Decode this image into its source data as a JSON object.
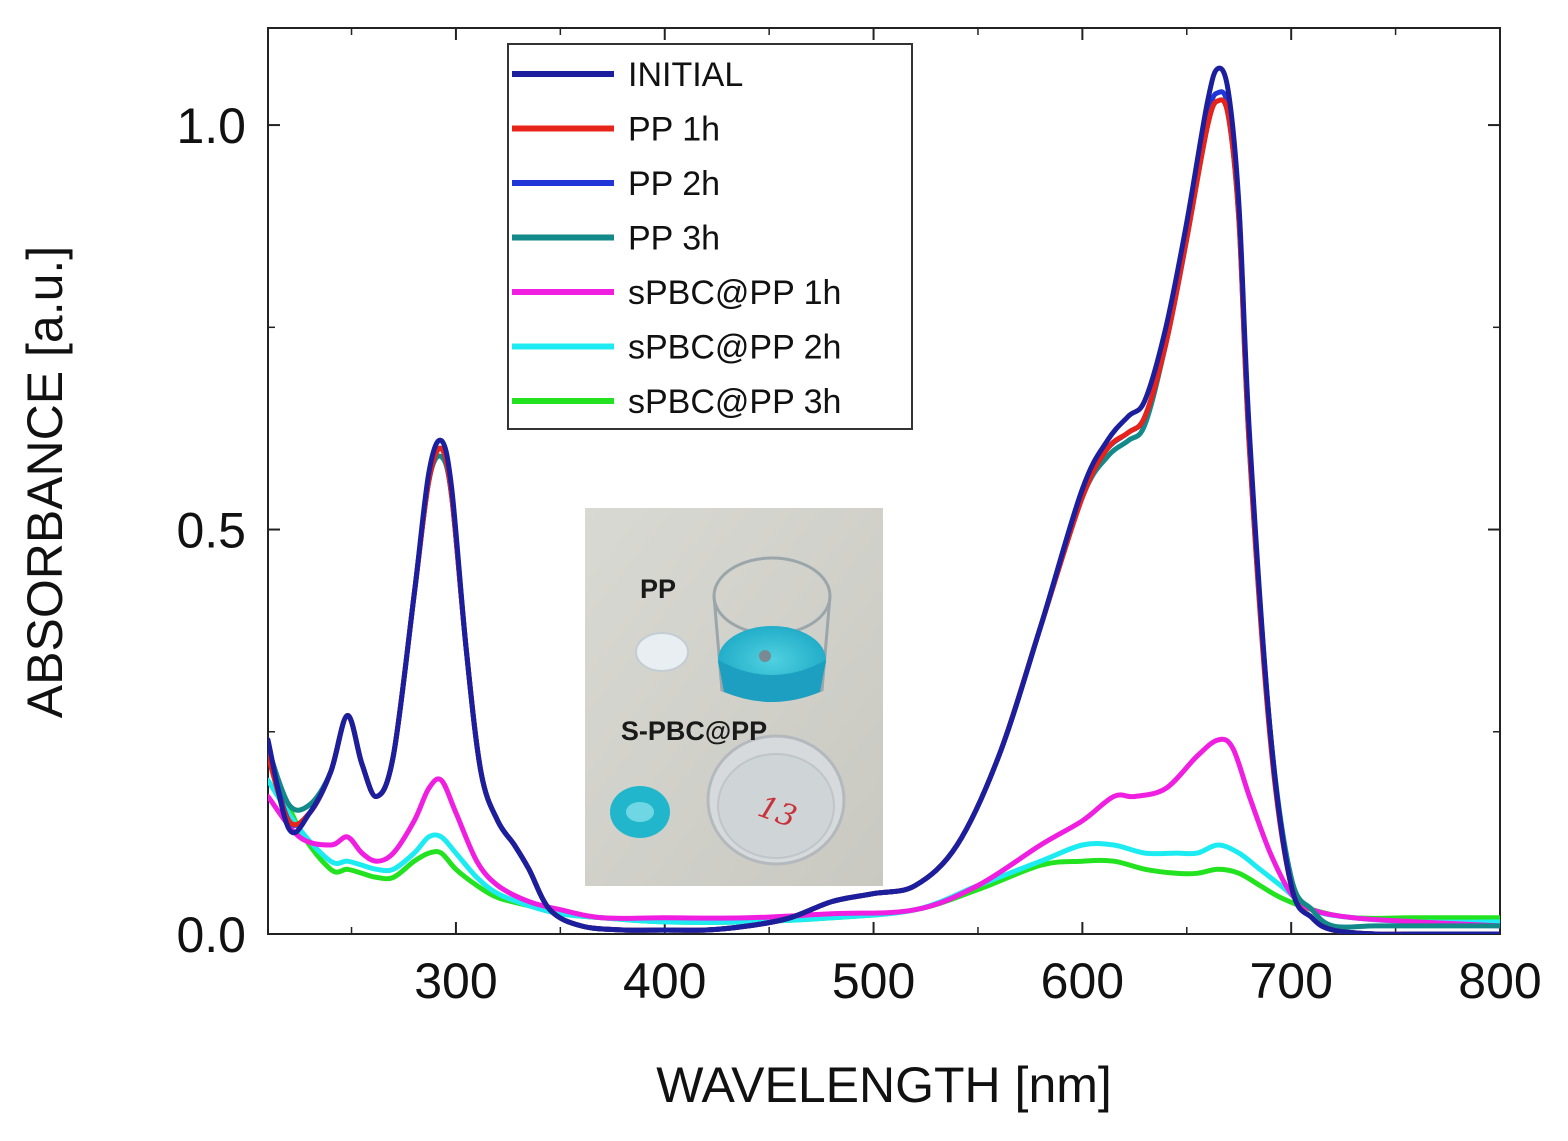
{
  "chart_data": {
    "type": "line",
    "xlabel": "WAVELENGTH [nm]",
    "ylabel": "ABSORBANCE [a.u.]",
    "xlim": [
      210,
      800
    ],
    "ylim": [
      0,
      1.12
    ],
    "xticks": [
      300,
      400,
      500,
      600,
      700,
      800
    ],
    "xtick_labels": [
      "300",
      "400",
      "500",
      "600",
      "700",
      "800"
    ],
    "yticks": [
      0.0,
      0.5,
      1.0
    ],
    "ytick_labels": [
      "0.0",
      "0.5",
      "1.0"
    ],
    "grid": false,
    "legend_position": "top-left",
    "series": [
      {
        "name": "INITIAL",
        "color": "#1b1f9e",
        "x": [
          210,
          220,
          230,
          240,
          248,
          255,
          262,
          270,
          280,
          287,
          293,
          298,
          305,
          312,
          320,
          328,
          335,
          345,
          360,
          380,
          400,
          420,
          440,
          460,
          480,
          500,
          520,
          540,
          560,
          580,
          600,
          612,
          622,
          630,
          640,
          650,
          660,
          665,
          670,
          675,
          680,
          690,
          700,
          710,
          720,
          740,
          760,
          800
        ],
        "y": [
          0.24,
          0.13,
          0.15,
          0.2,
          0.27,
          0.21,
          0.17,
          0.22,
          0.42,
          0.57,
          0.61,
          0.55,
          0.35,
          0.2,
          0.14,
          0.11,
          0.08,
          0.03,
          0.01,
          0.005,
          0.005,
          0.005,
          0.01,
          0.02,
          0.04,
          0.05,
          0.06,
          0.11,
          0.22,
          0.38,
          0.55,
          0.61,
          0.64,
          0.66,
          0.75,
          0.88,
          1.03,
          1.07,
          1.04,
          0.9,
          0.62,
          0.25,
          0.06,
          0.02,
          0.005,
          0.0,
          0.0,
          0.0
        ]
      },
      {
        "name": "PP 1h",
        "color": "#e8231a",
        "x": [
          210,
          220,
          230,
          240,
          248,
          255,
          262,
          270,
          280,
          287,
          293,
          298,
          305,
          312,
          320,
          328,
          335,
          345,
          360,
          380,
          400,
          420,
          440,
          460,
          480,
          500,
          520,
          540,
          560,
          580,
          600,
          612,
          622,
          630,
          640,
          650,
          660,
          665,
          670,
          675,
          680,
          690,
          700,
          710,
          720,
          740,
          760,
          800
        ],
        "y": [
          0.22,
          0.14,
          0.15,
          0.2,
          0.27,
          0.21,
          0.17,
          0.22,
          0.42,
          0.56,
          0.6,
          0.54,
          0.35,
          0.2,
          0.14,
          0.11,
          0.08,
          0.03,
          0.01,
          0.005,
          0.005,
          0.005,
          0.01,
          0.02,
          0.04,
          0.05,
          0.06,
          0.11,
          0.22,
          0.38,
          0.54,
          0.6,
          0.62,
          0.64,
          0.73,
          0.86,
          1.0,
          1.03,
          1.01,
          0.88,
          0.6,
          0.24,
          0.06,
          0.02,
          0.005,
          0.0,
          0.0,
          0.0
        ]
      },
      {
        "name": "PP 2h",
        "color": "#2136d6",
        "x": [
          210,
          220,
          230,
          240,
          248,
          255,
          262,
          270,
          280,
          287,
          293,
          298,
          305,
          312,
          320,
          328,
          335,
          345,
          360,
          380,
          400,
          420,
          440,
          460,
          480,
          500,
          520,
          540,
          560,
          580,
          600,
          612,
          622,
          630,
          640,
          650,
          660,
          665,
          670,
          675,
          680,
          690,
          700,
          710,
          720,
          740,
          760,
          800
        ],
        "y": [
          0.23,
          0.14,
          0.15,
          0.2,
          0.27,
          0.21,
          0.17,
          0.22,
          0.42,
          0.56,
          0.6,
          0.54,
          0.35,
          0.2,
          0.14,
          0.11,
          0.08,
          0.03,
          0.01,
          0.005,
          0.005,
          0.005,
          0.01,
          0.02,
          0.04,
          0.05,
          0.06,
          0.11,
          0.22,
          0.38,
          0.55,
          0.6,
          0.62,
          0.64,
          0.73,
          0.86,
          1.01,
          1.04,
          1.02,
          0.89,
          0.61,
          0.25,
          0.06,
          0.02,
          0.005,
          0.0,
          0.0,
          0.0
        ]
      },
      {
        "name": "PP 3h",
        "color": "#128a8a",
        "x": [
          210,
          220,
          230,
          240,
          248,
          255,
          262,
          270,
          280,
          287,
          293,
          298,
          305,
          312,
          320,
          328,
          335,
          345,
          360,
          380,
          400,
          420,
          440,
          460,
          480,
          500,
          520,
          540,
          560,
          580,
          600,
          612,
          622,
          630,
          640,
          650,
          660,
          665,
          670,
          675,
          680,
          690,
          700,
          710,
          720,
          740,
          760,
          800
        ],
        "y": [
          0.23,
          0.16,
          0.16,
          0.2,
          0.27,
          0.21,
          0.17,
          0.22,
          0.42,
          0.56,
          0.59,
          0.54,
          0.35,
          0.2,
          0.14,
          0.11,
          0.08,
          0.03,
          0.01,
          0.005,
          0.005,
          0.005,
          0.01,
          0.02,
          0.04,
          0.05,
          0.06,
          0.11,
          0.22,
          0.38,
          0.54,
          0.59,
          0.61,
          0.63,
          0.73,
          0.86,
          1.0,
          1.03,
          1.01,
          0.88,
          0.6,
          0.25,
          0.07,
          0.03,
          0.01,
          0.01,
          0.01,
          0.01
        ]
      },
      {
        "name": "sPBC@PP 1h",
        "color": "#f01ee0",
        "x": [
          210,
          225,
          240,
          248,
          255,
          262,
          270,
          280,
          287,
          293,
          300,
          310,
          320,
          335,
          350,
          370,
          400,
          440,
          480,
          520,
          550,
          580,
          600,
          615,
          625,
          640,
          655,
          665,
          672,
          680,
          690,
          700,
          710,
          730,
          760,
          800
        ],
        "y": [
          0.17,
          0.12,
          0.11,
          0.12,
          0.1,
          0.09,
          0.1,
          0.14,
          0.18,
          0.19,
          0.15,
          0.09,
          0.06,
          0.04,
          0.03,
          0.02,
          0.02,
          0.02,
          0.025,
          0.03,
          0.06,
          0.11,
          0.14,
          0.17,
          0.17,
          0.18,
          0.22,
          0.24,
          0.23,
          0.17,
          0.1,
          0.05,
          0.03,
          0.02,
          0.015,
          0.01
        ]
      },
      {
        "name": "sPBC@PP 2h",
        "color": "#1cecf2",
        "x": [
          210,
          225,
          240,
          248,
          255,
          262,
          270,
          280,
          287,
          293,
          300,
          310,
          320,
          335,
          350,
          370,
          400,
          440,
          480,
          520,
          550,
          580,
          600,
          615,
          630,
          645,
          655,
          665,
          675,
          685,
          695,
          710,
          730,
          760,
          800
        ],
        "y": [
          0.19,
          0.13,
          0.09,
          0.09,
          0.085,
          0.08,
          0.08,
          0.1,
          0.12,
          0.12,
          0.1,
          0.07,
          0.05,
          0.035,
          0.025,
          0.02,
          0.015,
          0.015,
          0.02,
          0.03,
          0.06,
          0.09,
          0.11,
          0.11,
          0.1,
          0.1,
          0.1,
          0.11,
          0.1,
          0.08,
          0.06,
          0.03,
          0.02,
          0.015,
          0.015
        ]
      },
      {
        "name": "sPBC@PP 3h",
        "color": "#23e21f",
        "x": [
          210,
          225,
          240,
          248,
          255,
          262,
          270,
          280,
          287,
          293,
          300,
          310,
          320,
          335,
          350,
          370,
          400,
          440,
          480,
          520,
          550,
          580,
          600,
          615,
          630,
          645,
          655,
          665,
          675,
          685,
          695,
          710,
          730,
          760,
          800
        ],
        "y": [
          0.22,
          0.13,
          0.08,
          0.08,
          0.075,
          0.07,
          0.07,
          0.09,
          0.1,
          0.1,
          0.08,
          0.06,
          0.045,
          0.035,
          0.025,
          0.02,
          0.015,
          0.015,
          0.02,
          0.03,
          0.055,
          0.085,
          0.09,
          0.09,
          0.08,
          0.075,
          0.075,
          0.08,
          0.075,
          0.06,
          0.045,
          0.03,
          0.02,
          0.02,
          0.02
        ]
      }
    ]
  },
  "inset_photo": {
    "label_top": "PP",
    "label_bottom": "S-PBC@PP",
    "dish_mark": "13"
  }
}
